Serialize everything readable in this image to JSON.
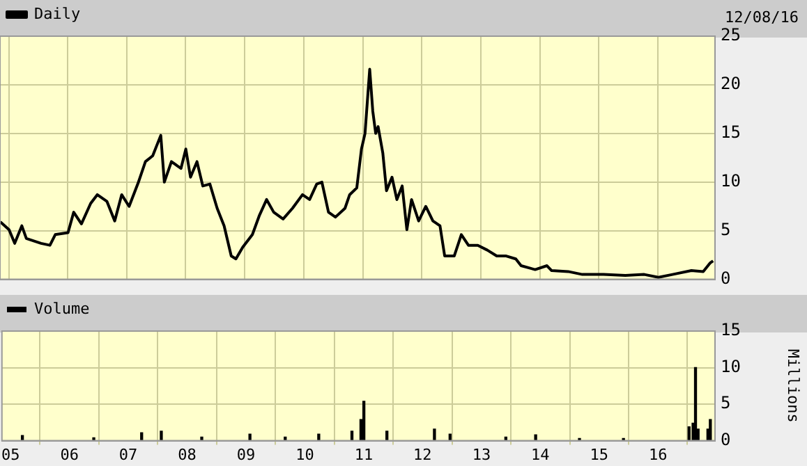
{
  "chart_data": [
    {
      "type": "line",
      "legend": "top left",
      "grid": true,
      "tick_labels": "y",
      "annotations": [
        "12/08/16"
      ],
      "xlim": [
        "2004-11-08",
        "2016-12-20"
      ],
      "xticks": [
        {
          "value": "2005-01-01",
          "label": null
        },
        {
          "value": "2006-01-01",
          "label": null
        },
        {
          "value": "2007-01-01",
          "label": null
        },
        {
          "value": "2008-01-01",
          "label": null
        },
        {
          "value": "2009-01-01",
          "label": null
        },
        {
          "value": "2010-01-01",
          "label": null
        },
        {
          "value": "2011-01-01",
          "label": null
        },
        {
          "value": "2012-01-01",
          "label": null
        },
        {
          "value": "2013-01-01",
          "label": null
        },
        {
          "value": "2014-01-01",
          "label": null
        },
        {
          "value": "2015-01-01",
          "label": null
        },
        {
          "value": "2016-01-01",
          "label": null
        }
      ],
      "ylim": [
        0,
        25
      ],
      "yticks": [
        0,
        5,
        10,
        15,
        20,
        25
      ],
      "series": [
        {
          "name": "Daily",
          "color": "#000000",
          "x": [
            "2004-11-10",
            "2005-01-03",
            "2005-02-07",
            "2005-03-23",
            "2005-04-20",
            "2005-07-20",
            "2005-09-13",
            "2005-10-16",
            "2006-01-03",
            "2006-02-07",
            "2006-03-27",
            "2006-05-23",
            "2006-07-03",
            "2006-09-01",
            "2006-10-19",
            "2006-12-01",
            "2007-01-16",
            "2007-03-15",
            "2007-04-27",
            "2007-06-11",
            "2007-07-31",
            "2007-08-22",
            "2007-10-05",
            "2007-12-03",
            "2008-01-02",
            "2008-01-31",
            "2008-03-11",
            "2008-04-16",
            "2008-05-30",
            "2008-07-14",
            "2008-08-26",
            "2008-10-09",
            "2008-11-07",
            "2008-12-19",
            "2009-02-17",
            "2009-04-02",
            "2009-05-16",
            "2009-06-29",
            "2009-08-26",
            "2009-10-23",
            "2009-12-24",
            "2010-02-06",
            "2010-03-22",
            "2010-04-23",
            "2010-06-03",
            "2010-07-16",
            "2010-09-13",
            "2010-10-12",
            "2010-11-25",
            "2010-12-24",
            "2011-01-15",
            "2011-02-02",
            "2011-02-13",
            "2011-03-04",
            "2011-03-22",
            "2011-04-06",
            "2011-05-05",
            "2011-05-28",
            "2011-07-01",
            "2011-07-31",
            "2011-09-02",
            "2011-10-01",
            "2011-10-30",
            "2011-12-13",
            "2012-01-26",
            "2012-03-10",
            "2012-04-23",
            "2012-05-22",
            "2012-07-20",
            "2012-09-02",
            "2012-10-16",
            "2012-12-13",
            "2013-02-10",
            "2013-04-09",
            "2013-06-07",
            "2013-08-05",
            "2013-09-07",
            "2013-12-03",
            "2014-02-14",
            "2014-03-15",
            "2014-06-25",
            "2014-09-21",
            "2015-01-30",
            "2015-06-14",
            "2015-10-09",
            "2016-01-05",
            "2016-04-01",
            "2016-07-27",
            "2016-10-08",
            "2016-11-21",
            "2016-12-08"
          ],
          "values": [
            5.9,
            5.1,
            3.7,
            5.5,
            4.2,
            3.7,
            3.5,
            4.6,
            4.8,
            6.9,
            5.7,
            7.8,
            8.7,
            8.0,
            6.0,
            8.7,
            7.5,
            10.0,
            12.1,
            12.7,
            14.8,
            10.0,
            12.1,
            11.4,
            13.4,
            10.5,
            12.1,
            9.6,
            9.8,
            7.3,
            5.5,
            2.4,
            2.1,
            3.3,
            4.6,
            6.6,
            8.2,
            6.9,
            6.2,
            7.3,
            8.7,
            8.2,
            9.8,
            10.0,
            6.9,
            6.4,
            7.3,
            8.7,
            9.4,
            13.4,
            15.0,
            19.1,
            21.6,
            17.3,
            15.0,
            15.7,
            13.0,
            9.1,
            10.5,
            8.2,
            9.6,
            5.1,
            8.2,
            6.0,
            7.5,
            6.0,
            5.5,
            2.4,
            2.4,
            4.6,
            3.5,
            3.5,
            3.0,
            2.4,
            2.4,
            2.1,
            1.4,
            1.0,
            1.4,
            0.9,
            0.8,
            0.5,
            0.5,
            0.4,
            0.5,
            0.2,
            0.5,
            0.9,
            0.8,
            1.7,
            1.9
          ]
        }
      ]
    },
    {
      "type": "bar",
      "legend": "top left",
      "grid": true,
      "ylabel": "Millions",
      "xlim": [
        "2004-11-08",
        "2016-12-20"
      ],
      "xticks": [
        {
          "value": "2005-01-01",
          "label": "05"
        },
        {
          "value": "2006-01-01",
          "label": "06"
        },
        {
          "value": "2007-01-01",
          "label": "07"
        },
        {
          "value": "2008-01-01",
          "label": "08"
        },
        {
          "value": "2009-01-01",
          "label": "09"
        },
        {
          "value": "2010-01-01",
          "label": "10"
        },
        {
          "value": "2011-01-01",
          "label": "11"
        },
        {
          "value": "2012-01-01",
          "label": "12"
        },
        {
          "value": "2013-01-01",
          "label": "13"
        },
        {
          "value": "2014-01-01",
          "label": "14"
        },
        {
          "value": "2015-01-01",
          "label": "15"
        },
        {
          "value": "2016-01-01",
          "label": "16"
        }
      ],
      "ylim": [
        0,
        15
      ],
      "yticks": [
        0,
        5,
        10,
        15
      ],
      "series": [
        {
          "name": "Volume",
          "color": "#000000",
          "x": [
            "2005-03-15",
            "2006-06-01",
            "2007-03-25",
            "2007-07-25",
            "2008-04-01",
            "2009-01-25",
            "2009-09-01",
            "2010-03-28",
            "2010-10-20",
            "2010-12-15",
            "2011-01-02",
            "2011-05-25",
            "2012-03-15",
            "2012-06-20",
            "2013-06-01",
            "2013-12-03",
            "2014-09-01",
            "2015-06-01",
            "2016-07-12",
            "2016-08-06",
            "2016-08-21",
            "2016-09-06",
            "2016-11-06",
            "2016-11-21"
          ],
          "values": [
            0.7,
            0.4,
            1.1,
            1.3,
            0.5,
            0.9,
            0.5,
            0.9,
            1.3,
            2.9,
            5.4,
            1.3,
            1.6,
            0.9,
            0.5,
            0.8,
            0.3,
            0.3,
            1.9,
            2.4,
            10.0,
            1.6,
            1.6,
            2.9
          ]
        }
      ]
    }
  ]
}
